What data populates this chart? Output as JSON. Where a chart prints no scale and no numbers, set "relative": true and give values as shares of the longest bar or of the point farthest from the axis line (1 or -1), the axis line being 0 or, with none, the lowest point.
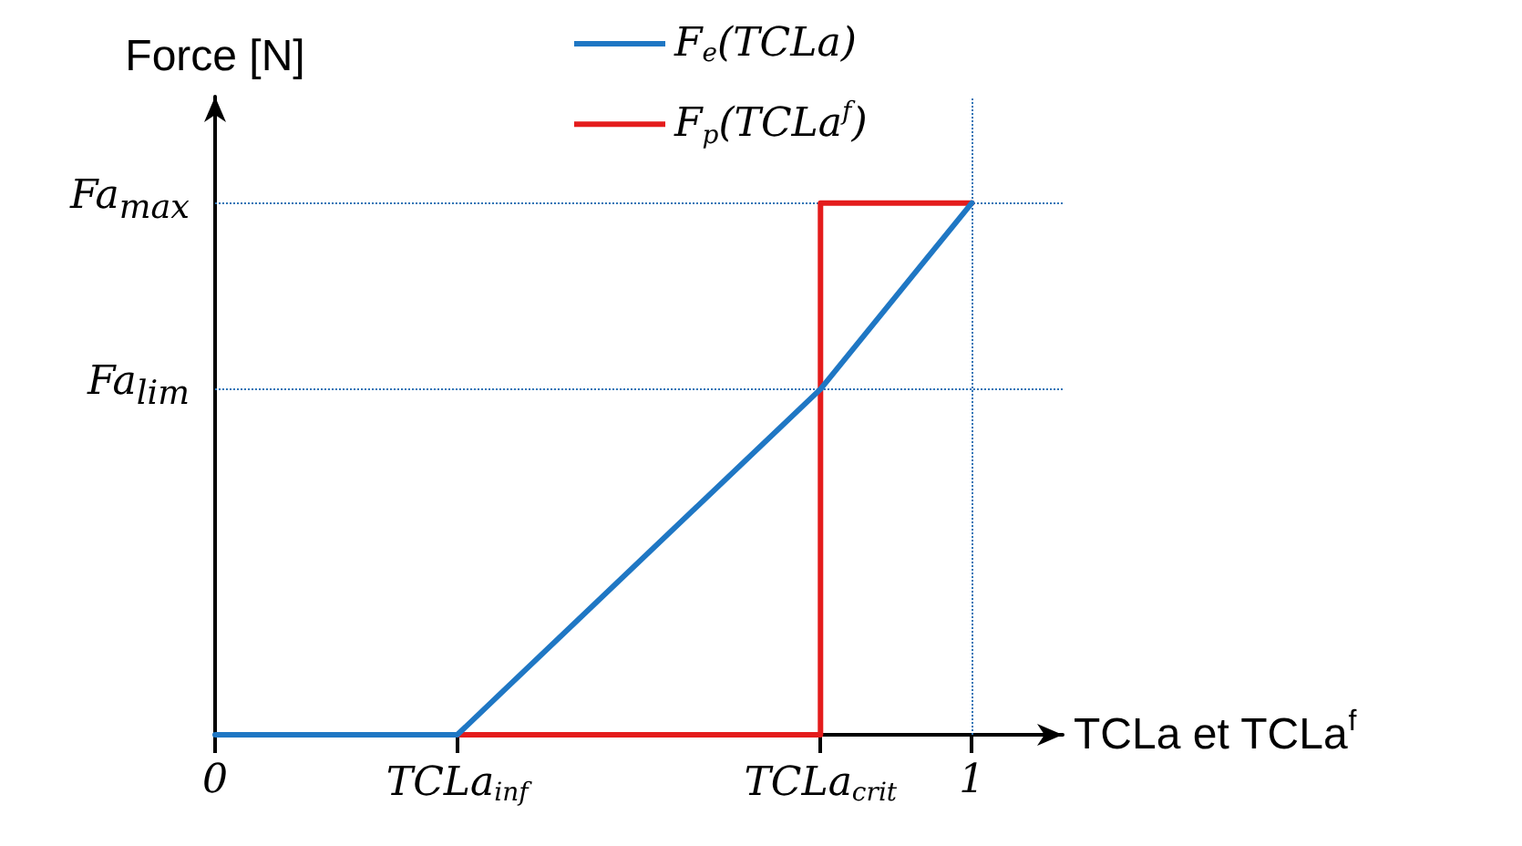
{
  "chart_data": {
    "type": "line",
    "xlabel": "TCLa et TCLa$^{f}$",
    "ylabel": "Force [N]",
    "xlim": [
      0,
      1.12
    ],
    "relative": true,
    "xticks": [
      {
        "value": 0,
        "label": "0"
      },
      {
        "value": 0.32,
        "label": "TCLa$_{inf}$"
      },
      {
        "value": 0.8,
        "label": "TCLa$_{crit}$"
      },
      {
        "value": 1,
        "label": "1"
      }
    ],
    "annotations": [
      {
        "text": "Fa$_{max}$",
        "x": 0,
        "y": 1
      },
      {
        "text": "Fa$_{lim}$",
        "x": 0,
        "y": 0.65
      }
    ],
    "series": [
      {
        "name": "F$_{e}$(TCLa)",
        "color": "#1f77c4",
        "x": [
          0,
          0.32,
          0.8,
          1
        ],
        "values": [
          0,
          0,
          0.65,
          1
        ]
      },
      {
        "name": "F$_{p}$(TCLa$^{f}$)",
        "color": "#e41c1c",
        "x": [
          0.32,
          0.8,
          0.8,
          1
        ],
        "values": [
          0,
          0,
          1,
          1
        ]
      }
    ],
    "ref_lines": [
      {
        "axis": "y",
        "value": 1,
        "color": "#2e75b6",
        "line_style": "dotted"
      },
      {
        "axis": "y",
        "value": 0.65,
        "color": "#2e75b6",
        "line_style": "dotted"
      },
      {
        "axis": "x",
        "value": 1,
        "color": "#2e75b6",
        "line_style": "dotted"
      }
    ],
    "legend": "top",
    "grid": false,
    "marker": "none",
    "line_style": "solid"
  }
}
